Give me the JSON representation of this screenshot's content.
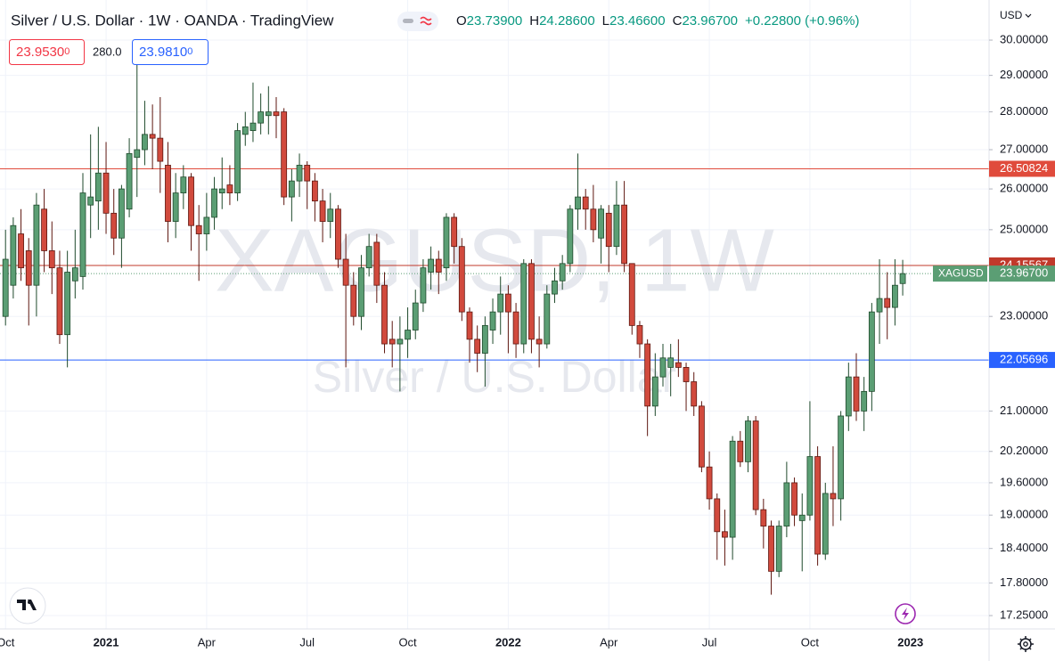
{
  "chart_data": {
    "type": "candlestick",
    "title": "Silver / U.S. Dollar · 1W · OANDA · TradingView",
    "legend": [
      {
        "key": "O",
        "value": "23.73900"
      },
      {
        "key": "H",
        "value": "24.28600"
      },
      {
        "key": "L",
        "value": "23.46600"
      },
      {
        "key": "C",
        "value": "23.96700"
      }
    ],
    "change": "+0.22800 (+0.96%)",
    "trade_panel": {
      "sell": "23.9530",
      "sell_small": "0",
      "spread": "280.0",
      "buy": "23.9810",
      "buy_small": "0"
    },
    "currency": "USD",
    "watermark": {
      "symbol": "XAGUSD, 1W",
      "description": "Silver / U.S. Dollar"
    },
    "categories": [
      "Oct",
      null,
      null,
      null,
      null,
      null,
      null,
      null,
      null,
      null,
      null,
      null,
      null,
      "2021",
      null,
      null,
      null,
      null,
      null,
      null,
      null,
      null,
      null,
      null,
      null,
      null,
      "Apr",
      null,
      null,
      null,
      null,
      null,
      null,
      null,
      null,
      null,
      null,
      null,
      null,
      "Jul",
      null,
      null,
      null,
      null,
      null,
      null,
      null,
      null,
      null,
      null,
      null,
      null,
      "Oct",
      null,
      null,
      null,
      null,
      null,
      null,
      null,
      null,
      null,
      null,
      null,
      null,
      "2022",
      null,
      null,
      null,
      null,
      null,
      null,
      null,
      null,
      null,
      null,
      null,
      null,
      "Apr",
      null,
      null,
      null,
      null,
      null,
      null,
      null,
      null,
      null,
      null,
      null,
      null,
      "Jul",
      null,
      null,
      null,
      null,
      null,
      null,
      null,
      null,
      null,
      null,
      null,
      null,
      "Oct",
      null,
      null,
      null,
      null,
      null,
      null,
      null,
      null,
      null,
      null,
      null,
      null,
      "2023"
    ],
    "open": [
      23.0,
      23.7,
      24.9,
      24.5,
      23.7,
      25.5,
      24.5,
      24.1,
      22.6,
      23.8,
      23.9,
      25.6,
      25.7,
      26.4,
      25.4,
      24.8,
      25.5,
      26.8,
      27.0,
      27.4,
      27.3,
      26.6,
      25.2,
      25.9,
      26.3,
      25.1,
      24.9,
      25.3,
      25.9,
      26.1,
      25.9,
      27.4,
      27.5,
      27.7,
      27.9,
      28.0,
      28.0,
      25.8,
      26.2,
      26.6,
      26.2,
      25.7,
      25.2,
      25.5,
      24.3,
      23.7,
      23.0,
      24.1,
      24.7,
      23.7,
      22.5,
      22.4,
      22.5,
      22.7,
      23.3,
      24.0,
      24.3,
      24.1,
      25.3,
      24.6,
      23.1,
      22.5,
      22.2,
      22.7,
      23.1,
      23.5,
      23.1,
      22.4,
      24.2,
      22.5,
      22.4,
      23.5,
      23.8,
      24.2,
      25.5,
      25.8,
      25.5,
      24.8,
      25.4,
      24.6,
      25.6,
      24.2,
      22.8,
      22.4,
      21.1,
      21.7,
      21.9,
      22.0,
      21.9,
      21.6,
      21.1,
      19.9,
      19.3,
      18.7,
      18.6,
      20.4,
      20.0,
      20.8,
      19.1,
      18.8,
      18.0,
      18.8,
      19.6,
      18.9,
      19.0,
      20.1,
      18.3,
      19.4,
      19.3,
      20.9,
      21.7,
      21.0,
      21.4,
      23.1,
      23.4,
      23.2,
      23.739,
      null
    ],
    "high": [
      25.0,
      25.3,
      25.5,
      24.8,
      25.9,
      26.0,
      25.2,
      24.5,
      24.5,
      25.0,
      26.4,
      27.4,
      27.6,
      27.2,
      26.0,
      26.1,
      27.3,
      29.4,
      28.3,
      28.2,
      28.4,
      27.2,
      26.4,
      26.6,
      26.4,
      25.6,
      25.9,
      26.3,
      26.8,
      26.6,
      27.7,
      28.0,
      28.8,
      28.5,
      28.7,
      28.4,
      28.1,
      26.5,
      26.9,
      26.7,
      26.4,
      26.0,
      25.9,
      25.6,
      24.9,
      24.0,
      24.4,
      24.9,
      24.9,
      24.0,
      22.9,
      23.0,
      23.2,
      23.6,
      24.3,
      24.6,
      24.5,
      25.4,
      25.4,
      24.8,
      23.2,
      22.8,
      23.0,
      23.4,
      23.9,
      23.7,
      23.3,
      24.3,
      24.3,
      23.0,
      23.7,
      24.1,
      24.4,
      25.6,
      26.9,
      26.0,
      26.1,
      25.6,
      25.6,
      26.2,
      26.2,
      24.2,
      22.9,
      22.5,
      22.2,
      22.4,
      22.4,
      22.5,
      22.0,
      21.8,
      21.2,
      20.2,
      19.4,
      19.1,
      20.5,
      20.6,
      20.9,
      20.9,
      19.3,
      18.9,
      18.9,
      20.0,
      19.7,
      19.4,
      21.2,
      20.3,
      19.6,
      20.3,
      21.0,
      22.0,
      22.2,
      21.7,
      23.3,
      24.3,
      24.0,
      24.3,
      24.286,
      null
    ],
    "low": [
      22.8,
      23.4,
      23.8,
      22.8,
      23.0,
      24.0,
      23.5,
      22.4,
      21.9,
      23.4,
      23.6,
      24.8,
      25.0,
      24.9,
      24.4,
      24.1,
      25.3,
      25.8,
      26.6,
      26.5,
      25.9,
      24.7,
      24.8,
      25.5,
      24.5,
      23.8,
      24.5,
      25.0,
      25.5,
      25.6,
      25.7,
      27.1,
      27.2,
      27.4,
      27.4,
      27.3,
      25.6,
      25.2,
      25.8,
      25.5,
      25.2,
      24.7,
      24.8,
      24.1,
      21.9,
      22.8,
      22.7,
      23.9,
      23.3,
      22.2,
      21.9,
      21.4,
      22.1,
      22.5,
      23.1,
      23.6,
      23.5,
      23.8,
      24.2,
      22.9,
      22.0,
      21.8,
      21.5,
      22.4,
      22.6,
      22.2,
      22.1,
      22.2,
      22.2,
      21.9,
      22.3,
      23.3,
      23.6,
      24.0,
      25.0,
      25.0,
      24.7,
      24.2,
      24.0,
      24.4,
      24.0,
      22.6,
      22.1,
      20.5,
      20.9,
      21.5,
      21.3,
      21.7,
      21.0,
      20.9,
      19.8,
      19.1,
      18.2,
      18.1,
      18.2,
      19.9,
      19.8,
      19.0,
      18.4,
      17.6,
      17.9,
      18.6,
      18.8,
      18.0,
      18.9,
      18.1,
      18.2,
      18.8,
      18.9,
      20.6,
      20.8,
      20.6,
      21.0,
      22.4,
      22.5,
      22.8,
      23.466,
      null
    ],
    "close": [
      24.3,
      25.1,
      24.1,
      23.7,
      25.6,
      24.5,
      24.1,
      22.6,
      24.0,
      24.1,
      25.9,
      25.8,
      26.4,
      25.4,
      24.8,
      26.0,
      26.9,
      27.0,
      27.4,
      27.3,
      26.7,
      25.2,
      25.9,
      26.3,
      25.1,
      24.9,
      25.3,
      26.0,
      26.0,
      25.9,
      27.5,
      27.6,
      27.7,
      28.0,
      28.0,
      27.9,
      25.8,
      26.2,
      26.6,
      26.2,
      25.7,
      25.2,
      25.5,
      24.3,
      23.7,
      23.0,
      24.1,
      24.6,
      23.7,
      22.4,
      22.4,
      22.5,
      22.7,
      23.3,
      24.1,
      24.3,
      24.0,
      25.3,
      24.6,
      23.1,
      22.5,
      22.2,
      22.8,
      23.1,
      23.5,
      23.1,
      22.4,
      24.2,
      22.5,
      22.4,
      23.5,
      23.8,
      24.2,
      25.5,
      25.8,
      25.5,
      25.0,
      25.5,
      24.6,
      25.6,
      24.2,
      22.8,
      22.4,
      21.1,
      21.7,
      22.1,
      22.1,
      21.9,
      21.6,
      21.1,
      19.9,
      19.3,
      18.7,
      18.6,
      20.4,
      20.0,
      20.8,
      19.1,
      18.8,
      18.0,
      18.8,
      19.6,
      19.0,
      19.0,
      20.1,
      18.3,
      19.4,
      19.3,
      20.9,
      21.7,
      21.0,
      21.4,
      23.1,
      23.4,
      23.2,
      23.7,
      23.967,
      null
    ],
    "up_color": "#5b9e74",
    "down_color": "#d14a3d",
    "ylim": [
      17.03,
      31.18
    ],
    "log_scale": true,
    "grid": true,
    "yticks": [
      {
        "value": 30,
        "label": "30.00000"
      },
      {
        "value": 29,
        "label": "29.00000"
      },
      {
        "value": 28,
        "label": "28.00000"
      },
      {
        "value": 27,
        "label": "27.00000"
      },
      {
        "value": 26,
        "label": "26.00000"
      },
      {
        "value": 25,
        "label": "25.00000"
      },
      {
        "value": 23,
        "label": "23.00000"
      },
      {
        "value": 21,
        "label": "21.00000"
      },
      {
        "value": 20.2,
        "label": "20.20000"
      },
      {
        "value": 19.6,
        "label": "19.60000"
      },
      {
        "value": 19,
        "label": "19.00000"
      },
      {
        "value": 18.4,
        "label": "18.40000"
      },
      {
        "value": 17.8,
        "label": "17.80000"
      },
      {
        "value": 17.25,
        "label": "17.25000"
      }
    ],
    "hlines": [
      {
        "value": 26.50824,
        "color": "#e04b3c"
      },
      {
        "value": 24.15567,
        "color": "#c0392b"
      },
      {
        "value": 22.05696,
        "color": "#2962ff"
      }
    ],
    "last_price": {
      "name": "XAGUSD",
      "value": 23.967,
      "label": "23.96700",
      "color": "#5b9e74"
    }
  }
}
